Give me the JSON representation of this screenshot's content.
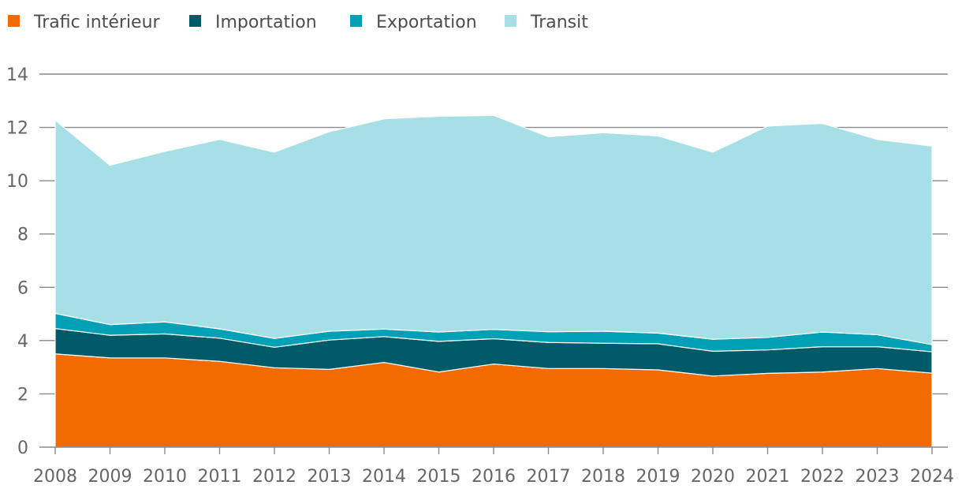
{
  "chart_data": {
    "type": "area",
    "stacked": true,
    "title": "",
    "xlabel": "",
    "ylabel": "",
    "ylim": [
      0,
      14
    ],
    "yticks": [
      0,
      2,
      4,
      6,
      8,
      10,
      12,
      14
    ],
    "grid": true,
    "legend_position": "top-left",
    "x": [
      "2008",
      "2009",
      "2010",
      "2011",
      "2012",
      "2013",
      "2014",
      "2015",
      "2016",
      "2017",
      "2018",
      "2019",
      "2020",
      "2021",
      "2022",
      "2023",
      "2024"
    ],
    "series": [
      {
        "name": "Trafic intérieur",
        "color": "#f26a00",
        "values": [
          3.5,
          3.35,
          3.35,
          3.22,
          2.98,
          2.92,
          3.18,
          2.82,
          3.12,
          2.95,
          2.95,
          2.9,
          2.67,
          2.77,
          2.82,
          2.95,
          2.78
        ]
      },
      {
        "name": "Importation",
        "color": "#005a68",
        "values": [
          0.95,
          0.85,
          0.9,
          0.87,
          0.77,
          1.1,
          0.97,
          1.15,
          0.95,
          0.98,
          0.95,
          0.98,
          0.93,
          0.88,
          0.95,
          0.82,
          0.8
        ]
      },
      {
        "name": "Exportation",
        "color": "#00a1b7",
        "values": [
          0.57,
          0.4,
          0.45,
          0.35,
          0.33,
          0.33,
          0.28,
          0.35,
          0.35,
          0.4,
          0.45,
          0.4,
          0.45,
          0.47,
          0.55,
          0.45,
          0.27
        ]
      },
      {
        "name": "Transit",
        "color": "#a7dfe7",
        "values": [
          7.25,
          5.98,
          6.4,
          7.11,
          6.99,
          7.49,
          7.89,
          8.1,
          8.03,
          7.32,
          7.45,
          7.4,
          7.02,
          7.93,
          7.83,
          7.33,
          7.45
        ]
      }
    ]
  }
}
